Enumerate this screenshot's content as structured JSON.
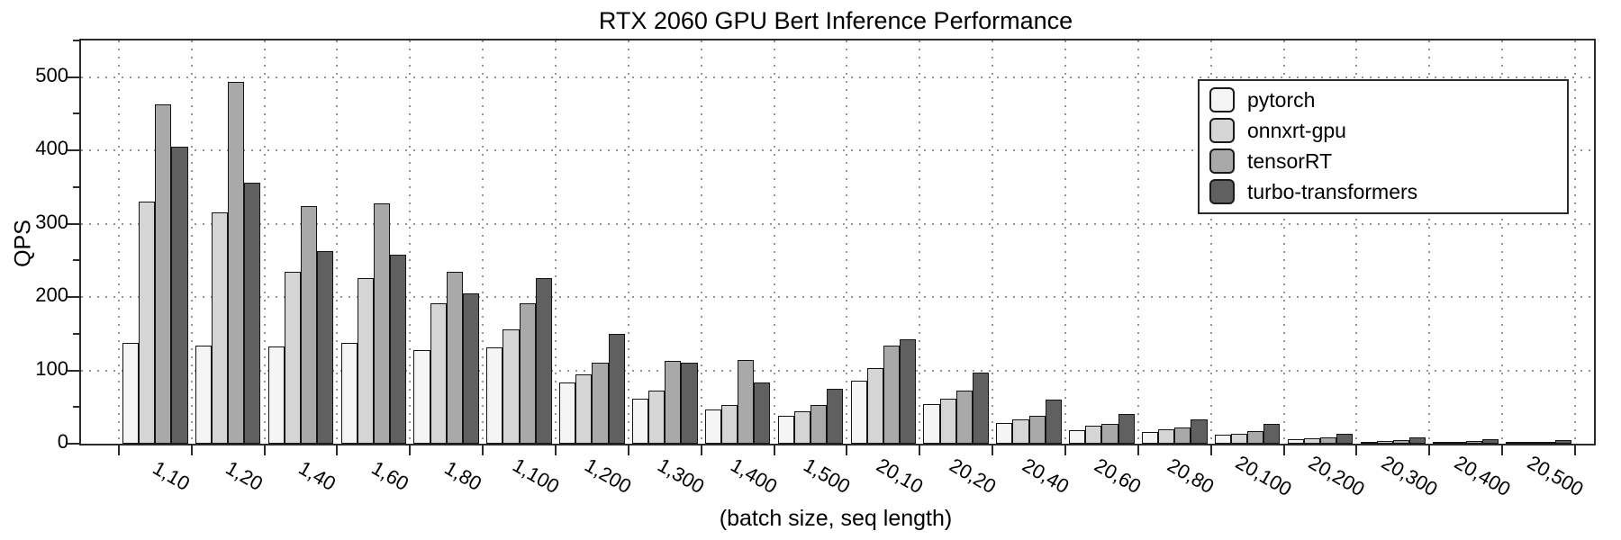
{
  "chart_data": {
    "type": "bar",
    "title": "RTX 2060 GPU Bert Inference Performance",
    "ylabel": "QPS",
    "xlabel": "(batch size, seq length)",
    "ylim": [
      0,
      550
    ],
    "yticks": [
      0,
      100,
      200,
      300,
      400,
      500
    ],
    "grid": "dotted",
    "legend_position": "top-right",
    "categories": [
      "1,10",
      "1,20",
      "1,40",
      "1,60",
      "1,80",
      "1,100",
      "1,200",
      "1,300",
      "1,400",
      "1,500",
      "20,10",
      "20,20",
      "20,40",
      "20,60",
      "20,80",
      "20,100",
      "20,200",
      "20,300",
      "20,400",
      "20,500"
    ],
    "series": [
      {
        "name": "pytorch",
        "color": "#f5f5f5",
        "values": [
          137,
          134,
          133,
          137,
          128,
          131,
          84,
          62,
          47,
          38,
          86,
          54,
          28,
          19,
          16,
          12,
          6,
          3,
          2.5,
          2
        ]
      },
      {
        "name": "onnxrt-gpu",
        "color": "#d5d5d5",
        "values": [
          330,
          316,
          234,
          226,
          192,
          156,
          95,
          72,
          53,
          44,
          103,
          61,
          33,
          25,
          20,
          14,
          7,
          4,
          3,
          2.5
        ]
      },
      {
        "name": "tensorRT",
        "color": "#a9a9a9",
        "values": [
          463,
          494,
          324,
          328,
          234,
          192,
          111,
          113,
          114,
          53,
          134,
          73,
          38,
          27,
          22,
          17,
          9,
          5,
          4,
          3
        ]
      },
      {
        "name": "turbo-transformers",
        "color": "#606060",
        "values": [
          405,
          356,
          263,
          258,
          205,
          226,
          150,
          110,
          84,
          75,
          142,
          97,
          60,
          41,
          33,
          27,
          13,
          8,
          6,
          5
        ]
      }
    ]
  }
}
